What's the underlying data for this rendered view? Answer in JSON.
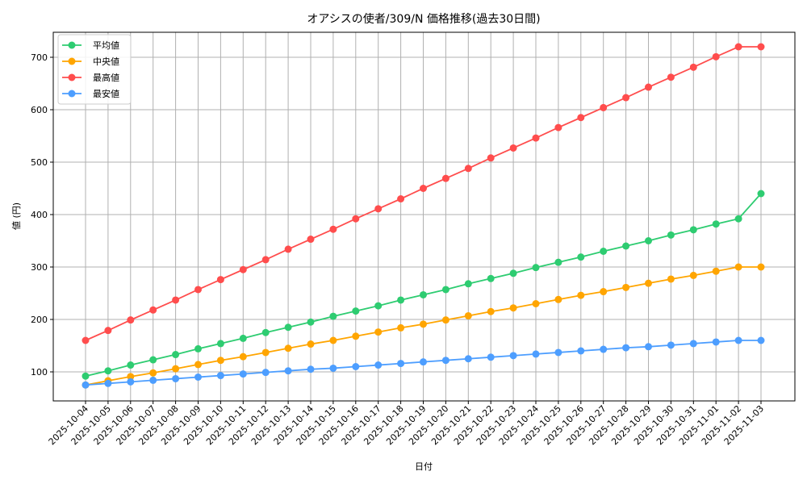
{
  "chart_data": {
    "type": "line",
    "title": "オアシスの使者/309/N 価格推移(過去30日間)",
    "xlabel": "日付",
    "ylabel": "値 (円)",
    "ylim": [
      42,
      745
    ],
    "yticks": [
      100,
      200,
      300,
      400,
      500,
      600,
      700
    ],
    "grid": true,
    "legend_position": "upper left",
    "categories": [
      "2025-10-04",
      "2025-10-05",
      "2025-10-06",
      "2025-10-07",
      "2025-10-08",
      "2025-10-09",
      "2025-10-10",
      "2025-10-11",
      "2025-10-12",
      "2025-10-13",
      "2025-10-14",
      "2025-10-15",
      "2025-10-16",
      "2025-10-17",
      "2025-10-18",
      "2025-10-19",
      "2025-10-20",
      "2025-10-21",
      "2025-10-22",
      "2025-10-23",
      "2025-10-24",
      "2025-10-25",
      "2025-10-26",
      "2025-10-27",
      "2025-10-28",
      "2025-10-29",
      "2025-10-30",
      "2025-10-31",
      "2025-11-01",
      "2025-11-02",
      "2025-11-03"
    ],
    "series": [
      {
        "name": "平均値",
        "color": "#2ecc71",
        "values": [
          92,
          102,
          113,
          123,
          133,
          144,
          154,
          164,
          175,
          185,
          195,
          206,
          216,
          226,
          237,
          247,
          257,
          268,
          278,
          288,
          299,
          309,
          319,
          330,
          340,
          350,
          361,
          371,
          382,
          392,
          440
        ]
      },
      {
        "name": "中央値",
        "color": "#ffa500",
        "values": [
          75,
          83,
          91,
          98,
          106,
          114,
          122,
          129,
          137,
          145,
          153,
          160,
          168,
          176,
          184,
          191,
          199,
          207,
          215,
          222,
          230,
          238,
          246,
          253,
          261,
          269,
          277,
          284,
          292,
          300,
          300
        ]
      },
      {
        "name": "最高値",
        "color": "#ff4d4d",
        "values": [
          160,
          179,
          199,
          218,
          237,
          257,
          276,
          295,
          314,
          334,
          353,
          372,
          392,
          411,
          430,
          450,
          469,
          488,
          508,
          527,
          546,
          566,
          585,
          604,
          623,
          643,
          662,
          681,
          701,
          720,
          720
        ]
      },
      {
        "name": "最安値",
        "color": "#4d9eff",
        "values": [
          75,
          78,
          81,
          84,
          87,
          90,
          93,
          96,
          99,
          102,
          105,
          107,
          110,
          113,
          116,
          119,
          122,
          125,
          128,
          131,
          134,
          137,
          140,
          143,
          146,
          148,
          151,
          154,
          157,
          160,
          160
        ]
      }
    ]
  }
}
